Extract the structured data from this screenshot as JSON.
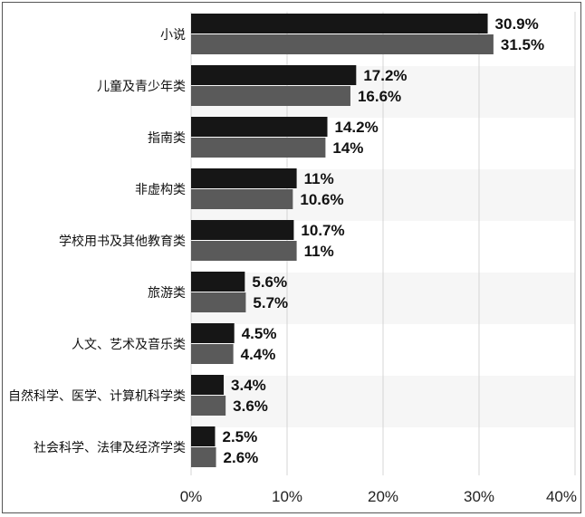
{
  "chart_data": {
    "type": "bar",
    "orientation": "horizontal",
    "categories": [
      "小说",
      "儿童及青少年类",
      "指南类",
      "非虚构类",
      "学校用书及其他教育类",
      "旅游类",
      "人文、艺术及音乐类",
      "自然科学、医学、计算机科学类",
      "社会科学、法律及经济学类"
    ],
    "series": [
      {
        "values": [
          30.9,
          17.2,
          14.2,
          11,
          10.7,
          5.6,
          4.5,
          3.4,
          2.5
        ],
        "labels": [
          "30.9%",
          "17.2%",
          "14.2%",
          "11%",
          "10.7%",
          "5.6%",
          "4.5%",
          "3.4%",
          "2.5%"
        ],
        "color": "#161616"
      },
      {
        "values": [
          31.5,
          16.6,
          14,
          10.6,
          11,
          5.7,
          4.4,
          3.6,
          2.6
        ],
        "labels": [
          "31.5%",
          "16.6%",
          "14%",
          "10.6%",
          "11%",
          "5.7%",
          "4.4%",
          "3.6%",
          "2.6%"
        ],
        "color": "#5a5a5a"
      }
    ],
    "xlim": [
      0,
      40
    ],
    "xticks": [
      0,
      10,
      20,
      30,
      40
    ],
    "xtick_labels": [
      "0%",
      "10%",
      "20%",
      "30%",
      "40%"
    ],
    "grid": "vertical",
    "legend": "none"
  }
}
